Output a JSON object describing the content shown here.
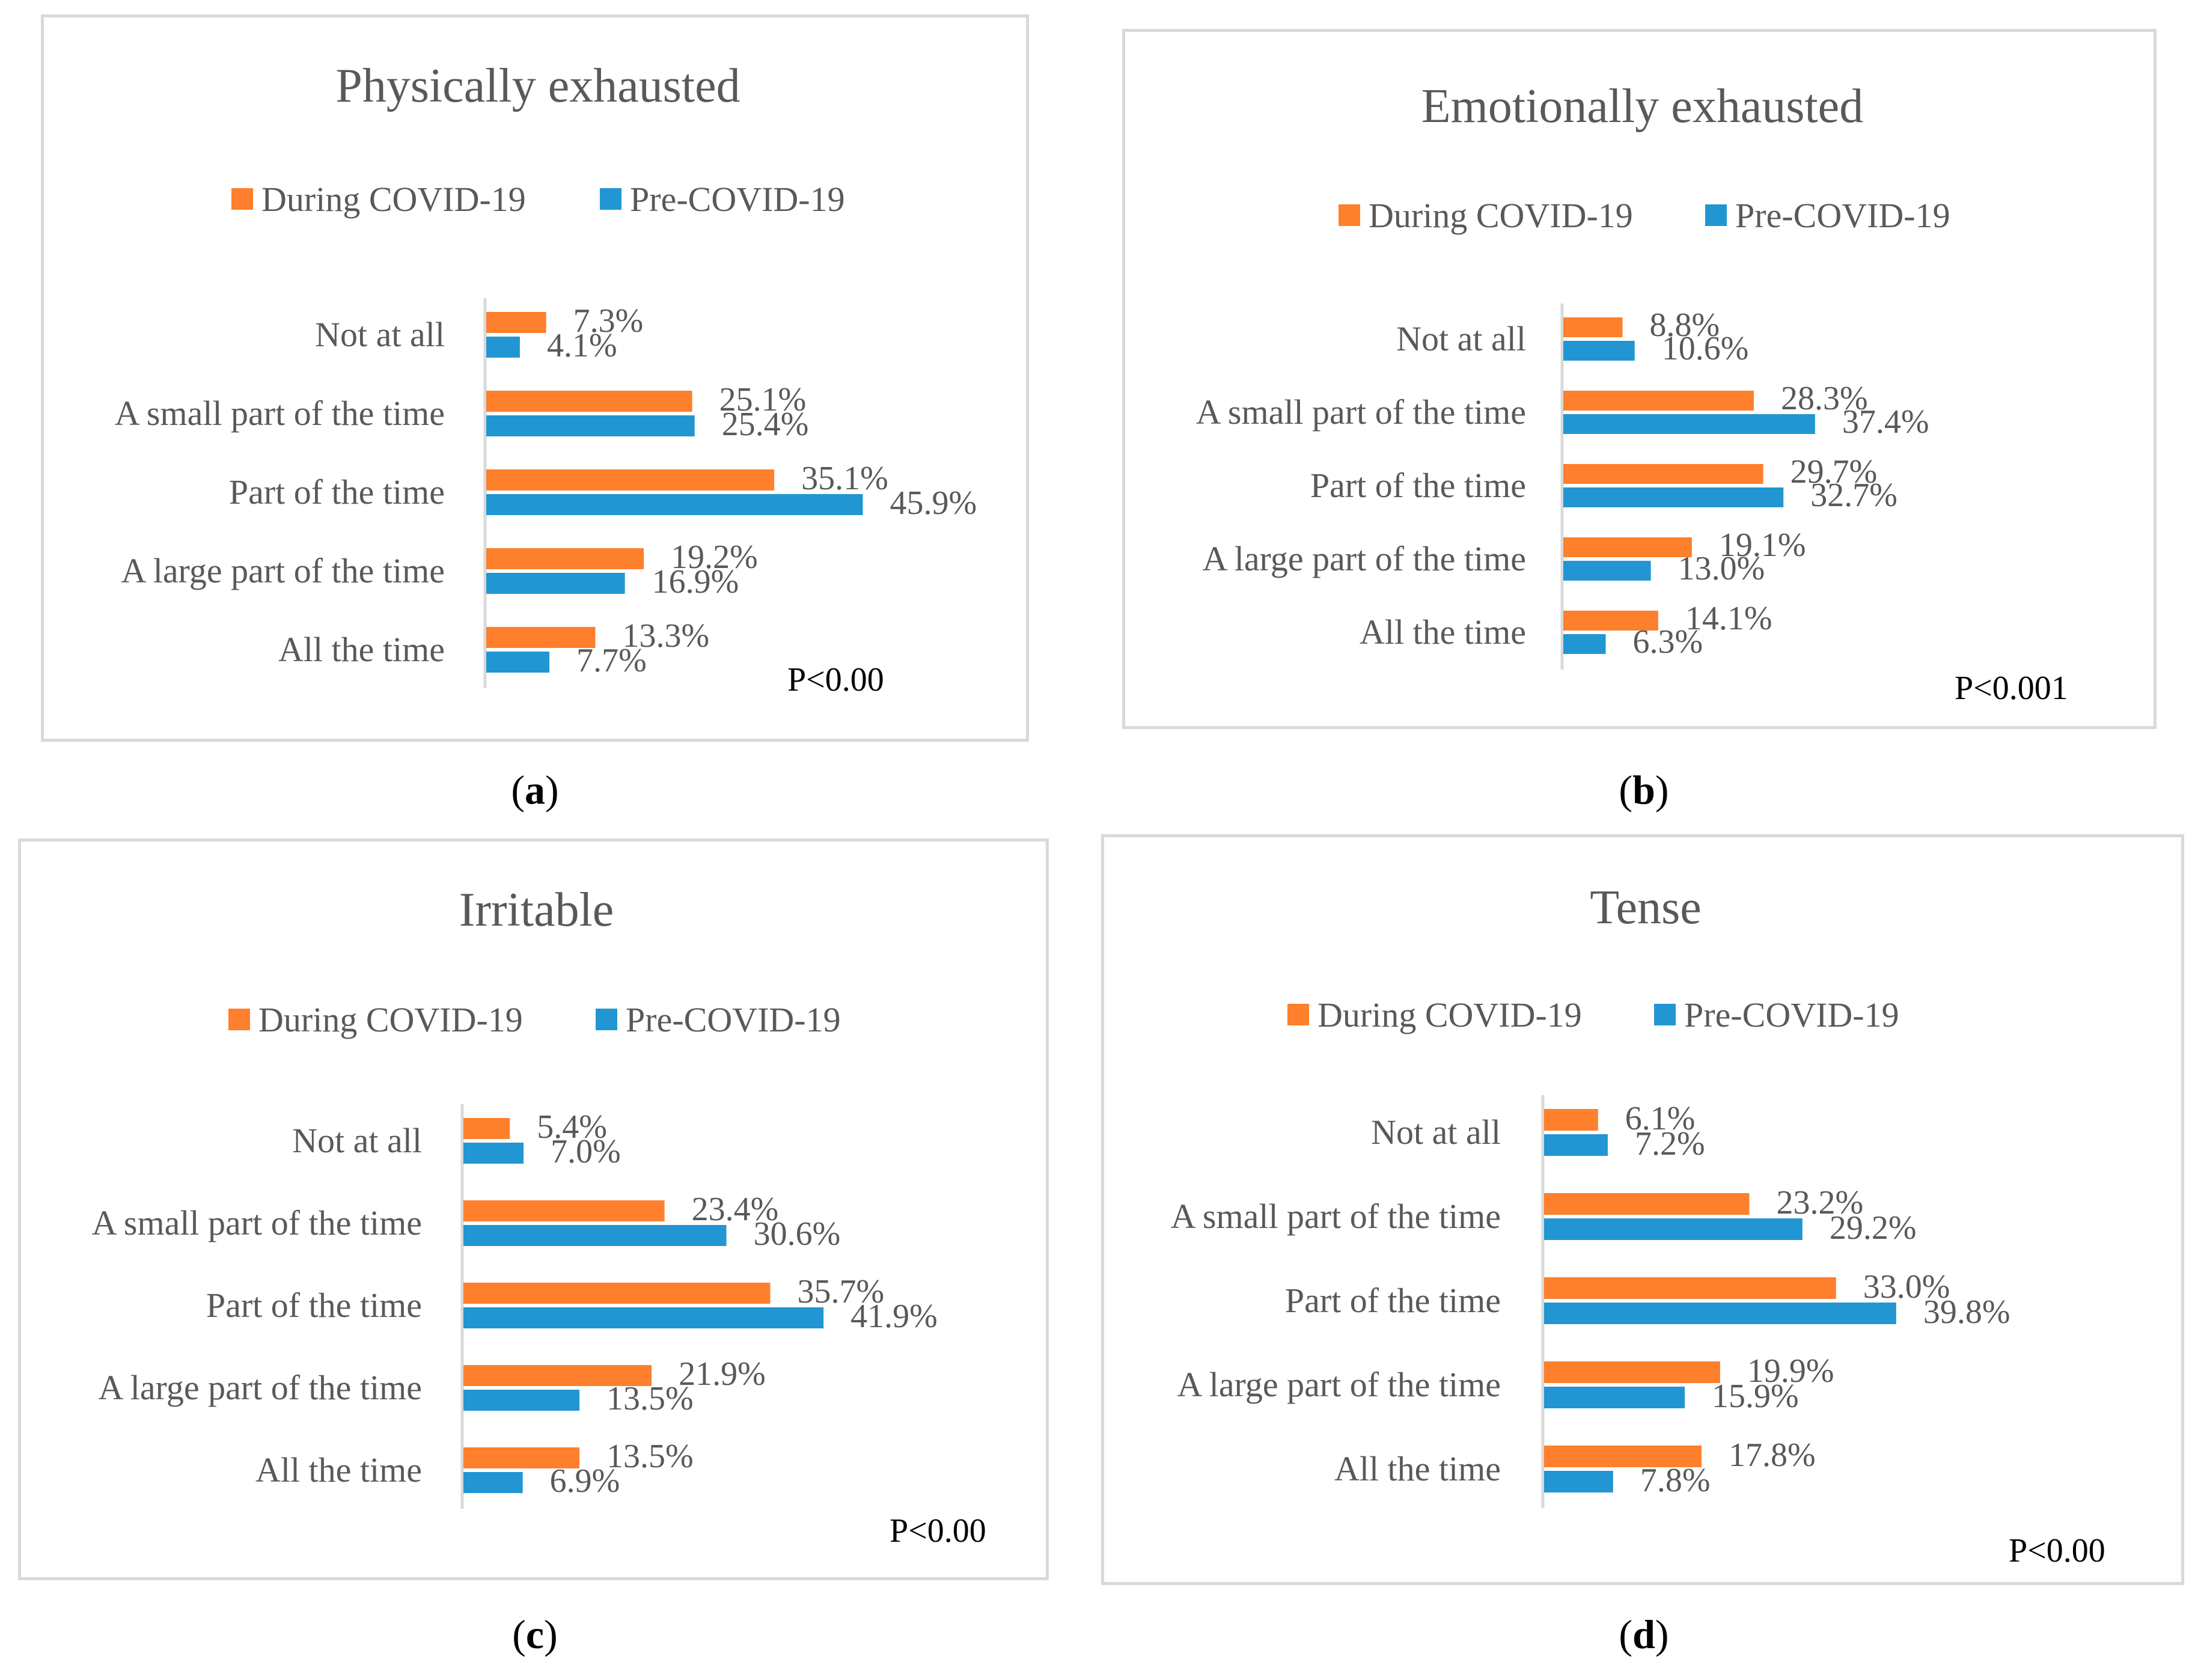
{
  "legend": {
    "during_label": "During COVID-19",
    "pre_label": "Pre-COVID-19"
  },
  "colors": {
    "during": "#fe7f2c",
    "pre": "#2296d2",
    "text": "#595959",
    "axis": "#d9d9d9",
    "frame": "#d9d9d9"
  },
  "categories": [
    "Not at all",
    "A small part of the time",
    "Part of the time",
    "A large part of the time",
    "All the time"
  ],
  "chart_data": [
    {
      "type": "bar",
      "orientation": "horizontal",
      "title": "Physically exhausted",
      "caption_letter": "a",
      "p_value": "P<0.00",
      "categories": [
        "Not at all",
        "A small part of the time",
        "Part of the time",
        "A large part of the time",
        "All the time"
      ],
      "series": [
        {
          "name": "During COVID-19",
          "values": [
            7.3,
            25.1,
            35.1,
            19.2,
            13.3
          ],
          "labels": [
            "7.3%",
            "25.1%",
            "35.1%",
            "19.2%",
            "13.3%"
          ]
        },
        {
          "name": "Pre-COVID-19",
          "values": [
            4.1,
            25.4,
            45.9,
            16.9,
            7.7
          ],
          "labels": [
            "4.1%",
            "25.4%",
            "45.9%",
            "16.9%",
            "7.7%"
          ]
        }
      ],
      "legend_position": "top",
      "grid": false
    },
    {
      "type": "bar",
      "orientation": "horizontal",
      "title": "Emotionally exhausted",
      "caption_letter": "b",
      "p_value": "P<0.001",
      "categories": [
        "Not at all",
        "A small part of the time",
        "Part of the time",
        "A large part of the time",
        "All the time"
      ],
      "series": [
        {
          "name": "During COVID-19",
          "values": [
            8.8,
            28.3,
            29.7,
            19.1,
            14.1
          ],
          "labels": [
            "8.8%",
            "28.3%",
            "29.7%",
            "19.1%",
            "14.1%"
          ]
        },
        {
          "name": "Pre-COVID-19",
          "values": [
            10.6,
            37.4,
            32.7,
            13.0,
            6.3
          ],
          "labels": [
            "10.6%",
            "37.4%",
            "32.7%",
            "13.0%",
            "6.3%"
          ]
        }
      ],
      "legend_position": "top",
      "grid": false
    },
    {
      "type": "bar",
      "orientation": "horizontal",
      "title": "Irritable",
      "caption_letter": "c",
      "p_value": "P<0.00",
      "categories": [
        "Not at all",
        "A small part of the time",
        "Part of the time",
        "A large part of the time",
        "All the time"
      ],
      "series": [
        {
          "name": "During COVID-19",
          "values": [
            5.4,
            23.4,
            35.7,
            21.9,
            13.5
          ],
          "labels": [
            "5.4%",
            "23.4%",
            "35.7%",
            "21.9%",
            "13.5%"
          ]
        },
        {
          "name": "Pre-COVID-19",
          "values": [
            7.0,
            30.6,
            41.9,
            13.5,
            6.9
          ],
          "labels": [
            "7.0%",
            "30.6%",
            "41.9%",
            "13.5%",
            "6.9%"
          ]
        }
      ],
      "legend_position": "top",
      "grid": false
    },
    {
      "type": "bar",
      "orientation": "horizontal",
      "title": "Tense",
      "caption_letter": "d",
      "p_value": "P<0.00",
      "categories": [
        "Not at all",
        "A small part of the time",
        "Part of the time",
        "A large part of the time",
        "All the time"
      ],
      "series": [
        {
          "name": "During COVID-19",
          "values": [
            6.1,
            23.2,
            33.0,
            19.9,
            17.8
          ],
          "labels": [
            "6.1%",
            "23.2%",
            "33.0%",
            "19.9%",
            "17.8%"
          ]
        },
        {
          "name": "Pre-COVID-19",
          "values": [
            7.2,
            29.2,
            39.8,
            15.9,
            7.8
          ],
          "labels": [
            "7.2%",
            "29.2%",
            "39.8%",
            "15.9%",
            "7.8%"
          ]
        }
      ],
      "legend_position": "top",
      "grid": false
    }
  ]
}
